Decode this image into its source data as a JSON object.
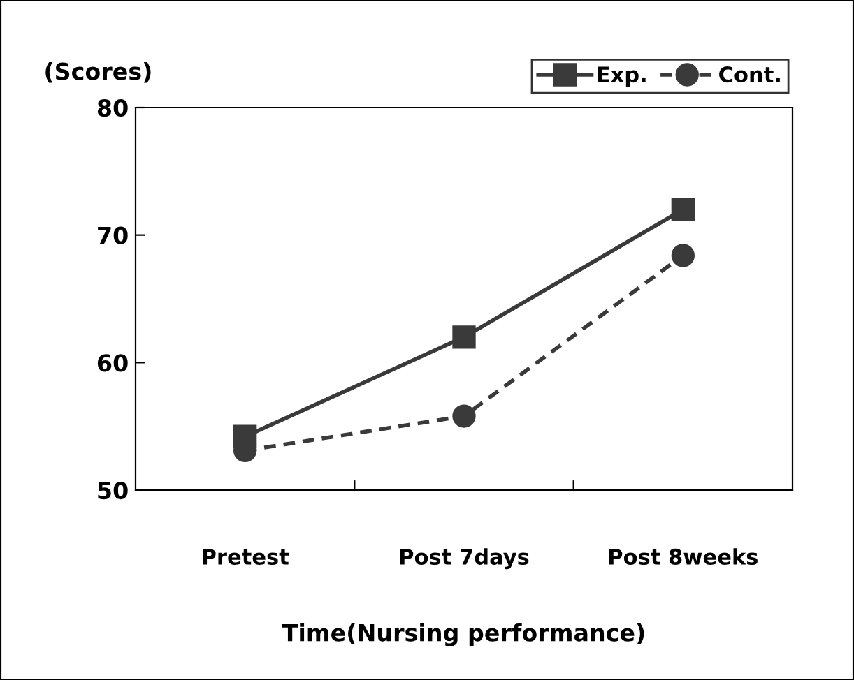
{
  "chart_data": {
    "type": "line",
    "ylabel": "(Scores)",
    "xlabel": "Time(Nursing performance)",
    "categories": [
      "Pretest",
      "Post 7days",
      "Post 8weeks"
    ],
    "series": [
      {
        "name": "Exp.",
        "color": "#3a3a3a",
        "values": [
          54.2,
          62,
          72
        ],
        "marker": "square",
        "line_style": "solid"
      },
      {
        "name": "Cont.",
        "color": "#3a3a3a",
        "values": [
          53.1,
          55.8,
          68.4
        ],
        "marker": "circle",
        "line_style": "dashed"
      }
    ],
    "ylim": [
      50,
      80
    ],
    "yticks": [
      50,
      60,
      70,
      80
    ],
    "grid": false,
    "legend": "top right"
  }
}
